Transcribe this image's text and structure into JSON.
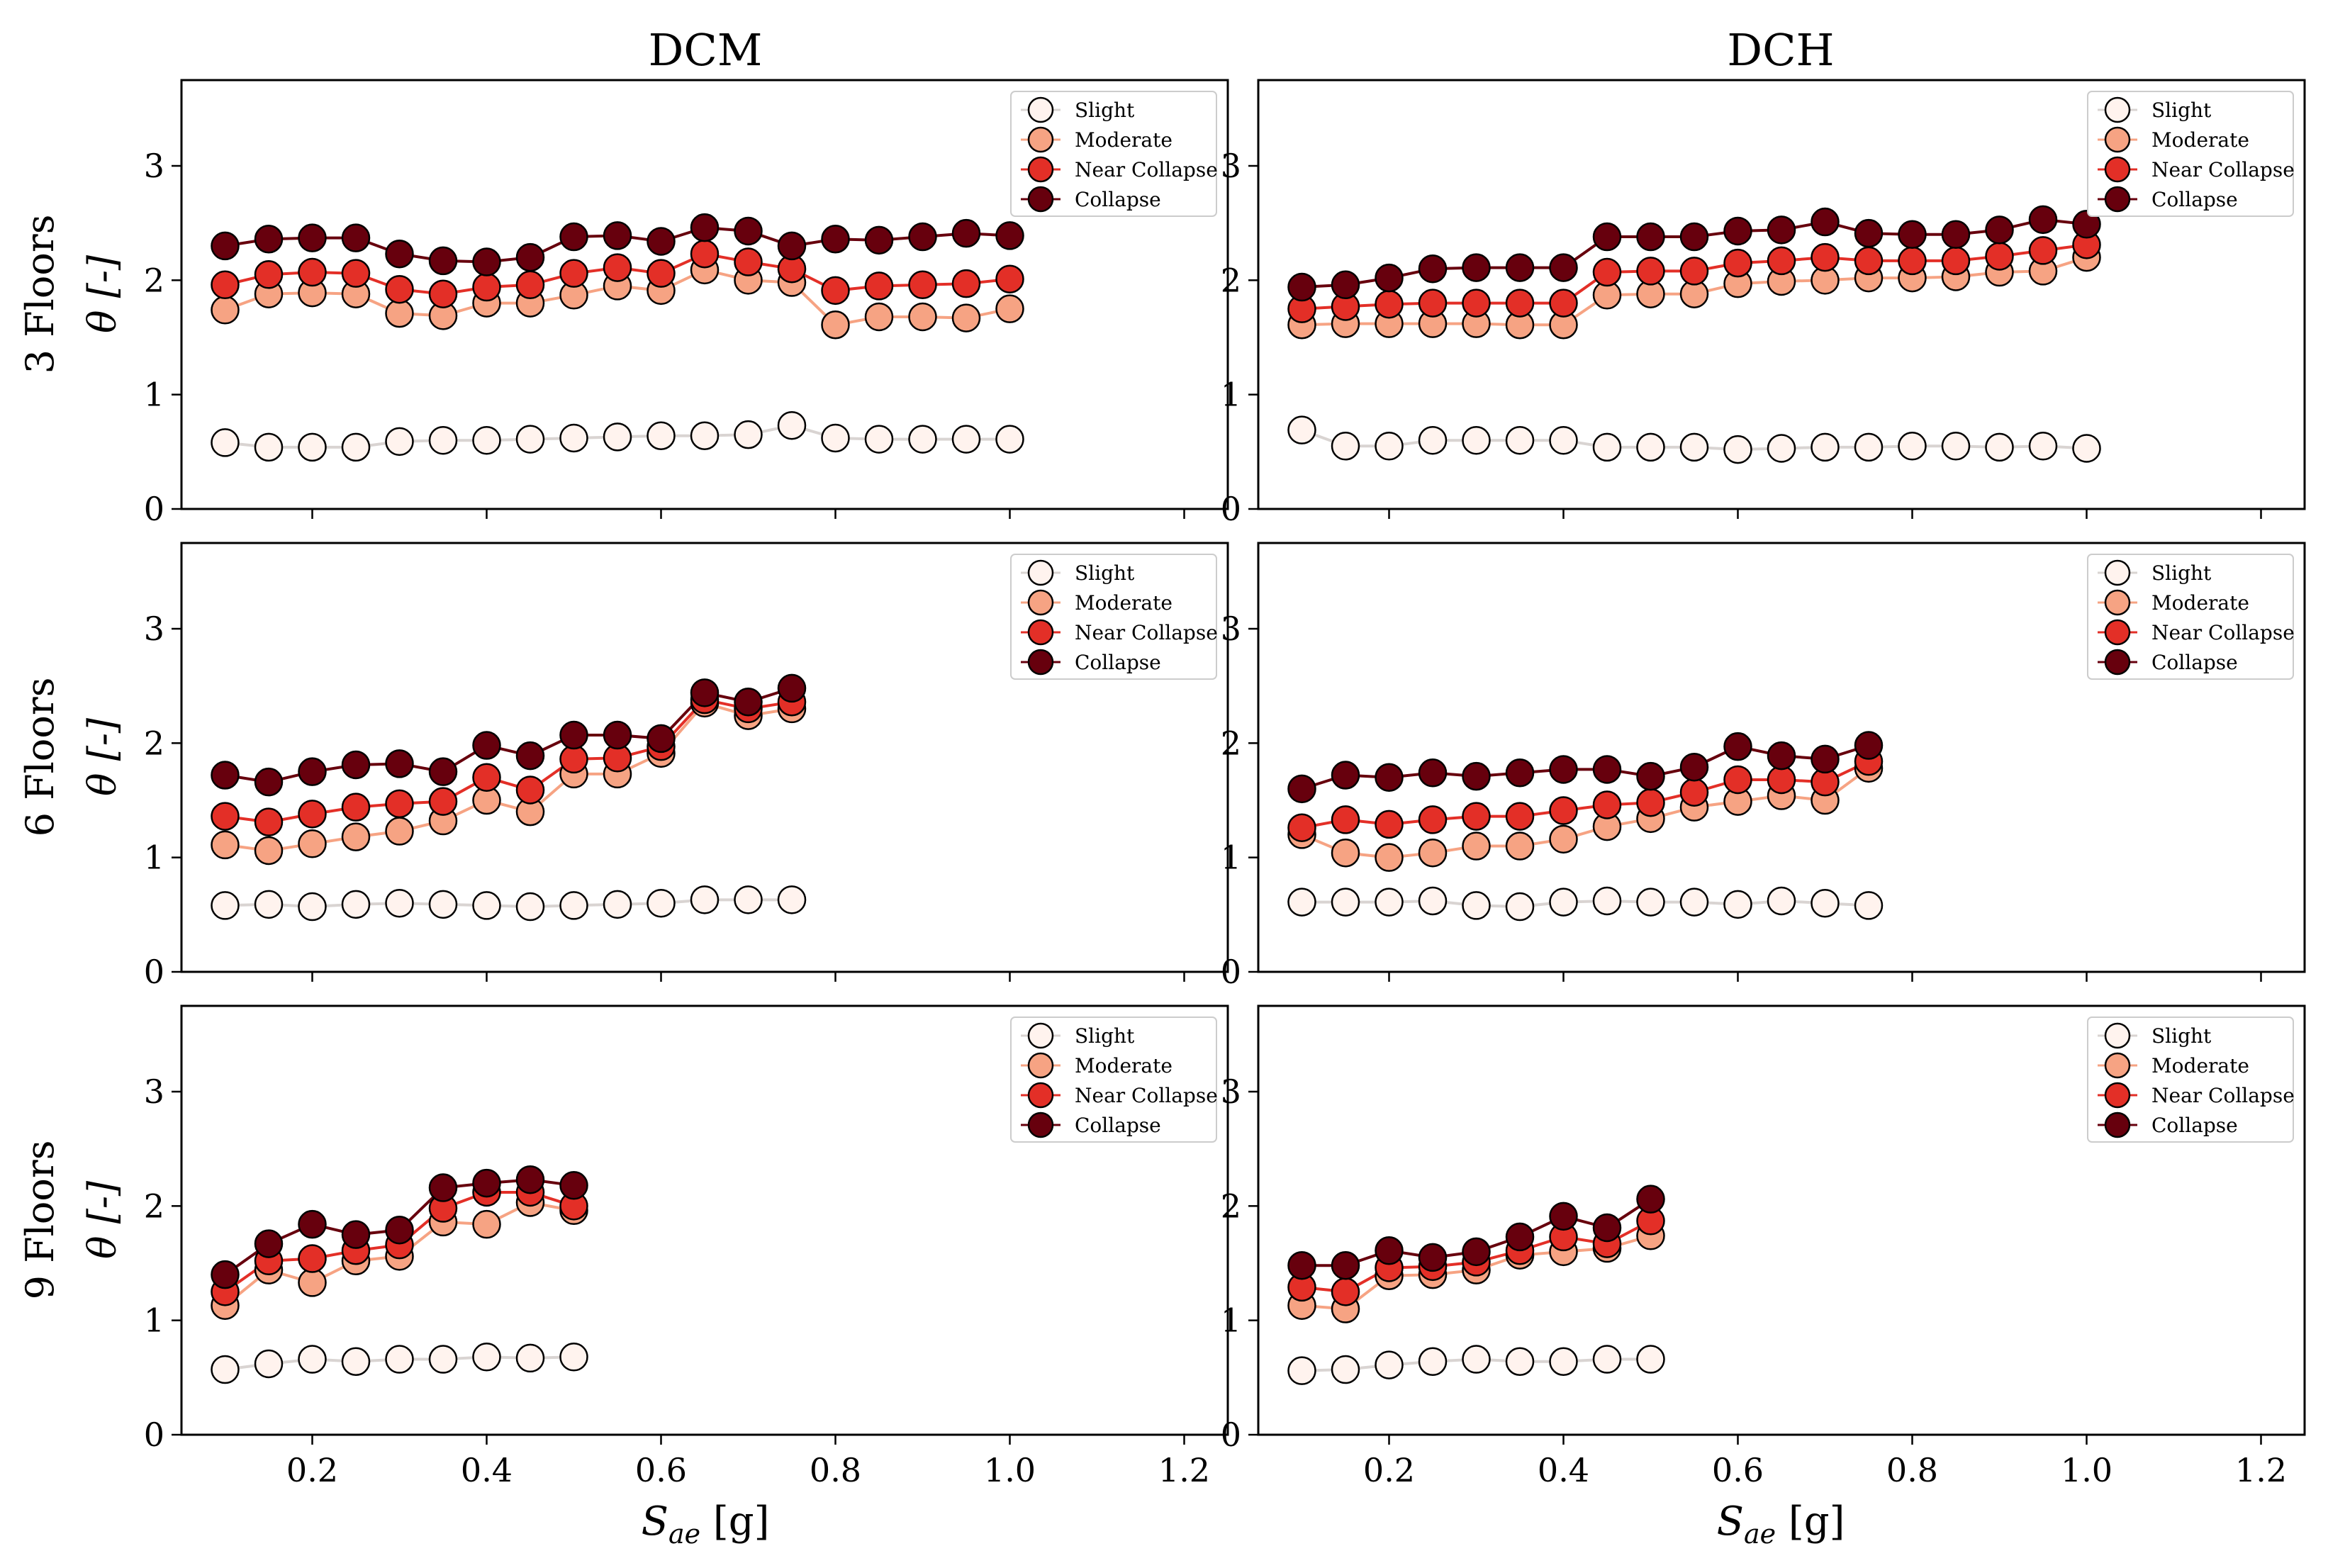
{
  "figure": {
    "column_titles": [
      "DCM",
      "DCH"
    ],
    "row_labels": [
      "3 Floors",
      "6 Floors",
      "9 Floors"
    ],
    "ylabel": "θ [-]",
    "xlabel_base": "S",
    "xlabel_sub": "ae",
    "xlabel_unit": " [g]"
  },
  "legend": {
    "entries": [
      "Slight",
      "Moderate",
      "Near Collapse",
      "Collapse"
    ]
  },
  "colors": {
    "Slight": "#fff3ee",
    "Moderate": "#f6a383",
    "Near Collapse": "#e32f27",
    "Collapse": "#67000d",
    "axes": "#000000"
  },
  "chart_data": [
    {
      "type": "line",
      "panel": "3 Floors - DCM",
      "row": 0,
      "col": 0,
      "x": [
        0.1,
        0.15,
        0.2,
        0.25,
        0.3,
        0.35,
        0.4,
        0.45,
        0.5,
        0.55,
        0.6,
        0.65,
        0.7,
        0.75,
        0.8,
        0.85,
        0.9,
        0.95,
        1.0
      ],
      "series": [
        {
          "name": "Slight",
          "values": [
            0.58,
            0.54,
            0.54,
            0.54,
            0.59,
            0.6,
            0.6,
            0.61,
            0.62,
            0.63,
            0.64,
            0.64,
            0.65,
            0.73,
            0.62,
            0.61,
            0.61,
            0.61,
            0.61
          ]
        },
        {
          "name": "Moderate",
          "values": [
            1.74,
            1.88,
            1.89,
            1.88,
            1.71,
            1.69,
            1.8,
            1.8,
            1.87,
            1.95,
            1.91,
            2.09,
            2.0,
            1.98,
            1.61,
            1.68,
            1.68,
            1.67,
            1.75
          ]
        },
        {
          "name": "Near Collapse",
          "values": [
            1.96,
            2.05,
            2.07,
            2.06,
            1.92,
            1.88,
            1.94,
            1.96,
            2.06,
            2.11,
            2.06,
            2.23,
            2.16,
            2.1,
            1.91,
            1.95,
            1.96,
            1.97,
            2.01
          ]
        },
        {
          "name": "Collapse",
          "values": [
            2.3,
            2.36,
            2.37,
            2.37,
            2.23,
            2.17,
            2.16,
            2.2,
            2.38,
            2.39,
            2.34,
            2.46,
            2.43,
            2.3,
            2.36,
            2.35,
            2.38,
            2.41,
            2.39
          ]
        }
      ],
      "xlim": [
        0.05,
        1.25
      ],
      "ylim": [
        0,
        3.75
      ],
      "xticks": [
        "0.2",
        "0.4",
        "0.6",
        "0.8",
        "1.0",
        "1.2"
      ],
      "yticks": [
        "0",
        "1",
        "2",
        "3"
      ],
      "legend": "top-right"
    },
    {
      "type": "line",
      "panel": "3 Floors - DCH",
      "row": 0,
      "col": 1,
      "x": [
        0.1,
        0.15,
        0.2,
        0.25,
        0.3,
        0.35,
        0.4,
        0.45,
        0.5,
        0.55,
        0.6,
        0.65,
        0.7,
        0.75,
        0.8,
        0.85,
        0.9,
        0.95,
        1.0
      ],
      "series": [
        {
          "name": "Slight",
          "values": [
            0.69,
            0.55,
            0.55,
            0.6,
            0.6,
            0.6,
            0.6,
            0.54,
            0.54,
            0.54,
            0.52,
            0.53,
            0.54,
            0.54,
            0.55,
            0.55,
            0.54,
            0.55,
            0.53
          ]
        },
        {
          "name": "Moderate",
          "values": [
            1.61,
            1.62,
            1.62,
            1.62,
            1.62,
            1.61,
            1.61,
            1.87,
            1.88,
            1.88,
            1.97,
            1.99,
            2.0,
            2.02,
            2.02,
            2.03,
            2.07,
            2.08,
            2.2
          ]
        },
        {
          "name": "Near Collapse",
          "values": [
            1.75,
            1.77,
            1.79,
            1.8,
            1.8,
            1.8,
            1.8,
            2.07,
            2.08,
            2.08,
            2.15,
            2.17,
            2.2,
            2.17,
            2.17,
            2.17,
            2.21,
            2.26,
            2.31
          ]
        },
        {
          "name": "Collapse",
          "values": [
            1.94,
            1.96,
            2.02,
            2.1,
            2.11,
            2.11,
            2.11,
            2.38,
            2.38,
            2.38,
            2.43,
            2.44,
            2.51,
            2.41,
            2.4,
            2.4,
            2.44,
            2.53,
            2.49
          ]
        }
      ],
      "xlim": [
        0.05,
        1.25
      ],
      "ylim": [
        0,
        3.75
      ],
      "xticks": [
        "0.2",
        "0.4",
        "0.6",
        "0.8",
        "1.0",
        "1.2"
      ],
      "yticks": [
        "0",
        "1",
        "2",
        "3"
      ],
      "legend": "top-right"
    },
    {
      "type": "line",
      "panel": "6 Floors - DCM",
      "row": 1,
      "col": 0,
      "x": [
        0.1,
        0.15,
        0.2,
        0.25,
        0.3,
        0.35,
        0.4,
        0.45,
        0.5,
        0.55,
        0.6,
        0.65,
        0.7,
        0.75
      ],
      "series": [
        {
          "name": "Slight",
          "values": [
            0.58,
            0.59,
            0.57,
            0.59,
            0.6,
            0.59,
            0.58,
            0.57,
            0.58,
            0.59,
            0.6,
            0.63,
            0.63,
            0.63
          ]
        },
        {
          "name": "Moderate",
          "values": [
            1.11,
            1.06,
            1.12,
            1.18,
            1.23,
            1.32,
            1.5,
            1.4,
            1.73,
            1.73,
            1.91,
            2.35,
            2.24,
            2.3
          ]
        },
        {
          "name": "Near Collapse",
          "values": [
            1.36,
            1.31,
            1.38,
            1.44,
            1.47,
            1.49,
            1.7,
            1.59,
            1.86,
            1.87,
            1.97,
            2.38,
            2.3,
            2.36
          ]
        },
        {
          "name": "Collapse",
          "values": [
            1.72,
            1.66,
            1.75,
            1.81,
            1.82,
            1.75,
            1.98,
            1.89,
            2.07,
            2.07,
            2.04,
            2.44,
            2.36,
            2.48
          ]
        }
      ],
      "xlim": [
        0.05,
        1.25
      ],
      "ylim": [
        0,
        3.75
      ],
      "xticks": [
        "0.2",
        "0.4",
        "0.6",
        "0.8",
        "1.0",
        "1.2"
      ],
      "yticks": [
        "0",
        "1",
        "2",
        "3"
      ],
      "legend": "top-right"
    },
    {
      "type": "line",
      "panel": "6 Floors - DCH",
      "row": 1,
      "col": 1,
      "x": [
        0.1,
        0.15,
        0.2,
        0.25,
        0.3,
        0.35,
        0.4,
        0.45,
        0.5,
        0.55,
        0.6,
        0.65,
        0.7,
        0.75
      ],
      "series": [
        {
          "name": "Slight",
          "values": [
            0.61,
            0.61,
            0.61,
            0.62,
            0.58,
            0.57,
            0.61,
            0.62,
            0.61,
            0.61,
            0.59,
            0.62,
            0.6,
            0.58
          ]
        },
        {
          "name": "Moderate",
          "values": [
            1.2,
            1.04,
            1.0,
            1.04,
            1.1,
            1.1,
            1.16,
            1.27,
            1.34,
            1.44,
            1.49,
            1.54,
            1.5,
            1.78
          ]
        },
        {
          "name": "Near Collapse",
          "values": [
            1.26,
            1.33,
            1.29,
            1.33,
            1.36,
            1.36,
            1.41,
            1.46,
            1.48,
            1.57,
            1.68,
            1.68,
            1.66,
            1.84
          ]
        },
        {
          "name": "Collapse",
          "values": [
            1.6,
            1.72,
            1.7,
            1.74,
            1.71,
            1.74,
            1.77,
            1.77,
            1.71,
            1.79,
            1.97,
            1.89,
            1.86,
            1.98
          ]
        }
      ],
      "xlim": [
        0.05,
        1.25
      ],
      "ylim": [
        0,
        3.75
      ],
      "xticks": [
        "0.2",
        "0.4",
        "0.6",
        "0.8",
        "1.0",
        "1.2"
      ],
      "yticks": [
        "0",
        "1",
        "2",
        "3"
      ],
      "legend": "top-right"
    },
    {
      "type": "line",
      "panel": "9 Floors - DCM",
      "row": 2,
      "col": 0,
      "x": [
        0.1,
        0.15,
        0.2,
        0.25,
        0.3,
        0.35,
        0.4,
        0.45,
        0.5
      ],
      "series": [
        {
          "name": "Slight",
          "values": [
            0.57,
            0.62,
            0.66,
            0.64,
            0.66,
            0.66,
            0.68,
            0.67,
            0.68
          ]
        },
        {
          "name": "Moderate",
          "values": [
            1.13,
            1.44,
            1.33,
            1.52,
            1.56,
            1.86,
            1.84,
            2.03,
            1.96
          ]
        },
        {
          "name": "Near Collapse",
          "values": [
            1.25,
            1.52,
            1.54,
            1.61,
            1.66,
            1.98,
            2.12,
            2.12,
            2.0
          ]
        },
        {
          "name": "Collapse",
          "values": [
            1.4,
            1.67,
            1.84,
            1.75,
            1.79,
            2.16,
            2.2,
            2.23,
            2.18
          ]
        }
      ],
      "xlim": [
        0.05,
        1.25
      ],
      "ylim": [
        0,
        3.75
      ],
      "xticks": [
        "0.2",
        "0.4",
        "0.6",
        "0.8",
        "1.0",
        "1.2"
      ],
      "yticks": [
        "0",
        "1",
        "2",
        "3"
      ],
      "legend": "top-right"
    },
    {
      "type": "line",
      "panel": "9 Floors - DCH",
      "row": 2,
      "col": 1,
      "x": [
        0.1,
        0.15,
        0.2,
        0.25,
        0.3,
        0.35,
        0.4,
        0.45,
        0.5
      ],
      "series": [
        {
          "name": "Slight",
          "values": [
            0.56,
            0.57,
            0.61,
            0.64,
            0.66,
            0.64,
            0.64,
            0.66,
            0.66
          ]
        },
        {
          "name": "Moderate",
          "values": [
            1.13,
            1.1,
            1.39,
            1.4,
            1.44,
            1.57,
            1.6,
            1.63,
            1.74
          ]
        },
        {
          "name": "Near Collapse",
          "values": [
            1.29,
            1.25,
            1.46,
            1.47,
            1.51,
            1.61,
            1.73,
            1.67,
            1.87
          ]
        },
        {
          "name": "Collapse",
          "values": [
            1.48,
            1.48,
            1.61,
            1.55,
            1.6,
            1.73,
            1.91,
            1.81,
            2.06
          ]
        }
      ],
      "xlim": [
        0.05,
        1.25
      ],
      "ylim": [
        0,
        3.75
      ],
      "xticks": [
        "0.2",
        "0.4",
        "0.6",
        "0.8",
        "1.0",
        "1.2"
      ],
      "yticks": [
        "0",
        "1",
        "2",
        "3"
      ],
      "legend": "top-right"
    }
  ]
}
